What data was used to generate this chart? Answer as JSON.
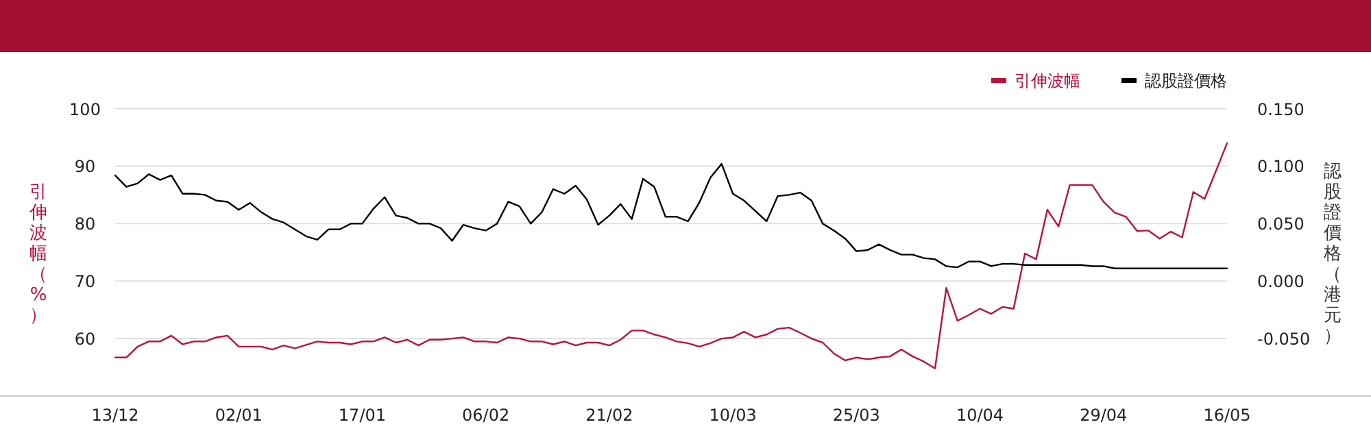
{
  "chart_data": {
    "type": "line",
    "categories": [
      "13/12",
      null,
      null,
      null,
      null,
      null,
      null,
      null,
      null,
      null,
      null,
      "02/01",
      null,
      null,
      null,
      null,
      null,
      null,
      null,
      null,
      null,
      null,
      "17/01",
      null,
      null,
      null,
      null,
      null,
      null,
      null,
      null,
      null,
      null,
      "06/02",
      null,
      null,
      null,
      null,
      null,
      null,
      null,
      null,
      null,
      null,
      "21/02",
      null,
      null,
      null,
      null,
      null,
      null,
      null,
      null,
      null,
      null,
      "10/03",
      null,
      null,
      null,
      null,
      null,
      null,
      null,
      null,
      null,
      null,
      "25/03",
      null,
      null,
      null,
      null,
      null,
      null,
      null,
      null,
      null,
      null,
      "10/04",
      null,
      null,
      null,
      null,
      null,
      null,
      null,
      null,
      null,
      null,
      "29/04",
      null,
      null,
      null,
      null,
      null,
      null,
      null,
      null,
      null,
      null,
      "16/05"
    ],
    "series": [
      {
        "name": "引伸波幅",
        "color": "#b8123f",
        "values": [
          56.7,
          56.7,
          58.6,
          59.5,
          59.5,
          60.5,
          59.0,
          59.5,
          59.5,
          60.2,
          60.5,
          58.6,
          58.6,
          58.6,
          58.1,
          58.8,
          58.3,
          58.9,
          59.5,
          59.3,
          59.3,
          59.0,
          59.5,
          59.5,
          60.2,
          59.3,
          59.8,
          58.8,
          59.8,
          59.8,
          60.0,
          60.2,
          59.5,
          59.5,
          59.3,
          60.2,
          60.0,
          59.5,
          59.5,
          59.0,
          59.5,
          58.8,
          59.3,
          59.3,
          58.8,
          59.8,
          61.4,
          61.4,
          60.7,
          60.2,
          59.5,
          59.2,
          58.6,
          59.2,
          60.0,
          60.2,
          61.2,
          60.2,
          60.7,
          61.7,
          61.9,
          61.0,
          60.0,
          59.3,
          57.4,
          56.2,
          56.7,
          56.4,
          56.7,
          56.9,
          58.1,
          56.9,
          56.0,
          54.8,
          68.8,
          63.1,
          64.1,
          65.2,
          64.3,
          65.5,
          65.2,
          74.8,
          73.8,
          82.4,
          79.5,
          86.7,
          86.7,
          86.7,
          83.8,
          81.9,
          81.2,
          78.7,
          78.8,
          77.4,
          78.6,
          77.6,
          85.5,
          84.3,
          89.1,
          94.0
        ]
      },
      {
        "name": "認股證價格",
        "color": "#000000",
        "axis": "y2",
        "values": [
          0.092,
          0.082,
          0.085,
          0.093,
          0.088,
          0.092,
          0.076,
          0.076,
          0.075,
          0.07,
          0.069,
          0.062,
          0.068,
          0.06,
          0.054,
          0.051,
          0.045,
          0.039,
          0.036,
          0.045,
          0.045,
          0.05,
          0.05,
          0.063,
          0.073,
          0.057,
          0.055,
          0.05,
          0.05,
          0.046,
          0.035,
          0.049,
          0.046,
          0.044,
          0.05,
          0.069,
          0.065,
          0.05,
          0.06,
          0.08,
          0.076,
          0.083,
          0.071,
          0.049,
          0.057,
          0.067,
          0.054,
          0.089,
          0.082,
          0.056,
          0.056,
          0.052,
          0.068,
          0.09,
          0.102,
          0.076,
          0.07,
          0.061,
          0.052,
          0.074,
          0.075,
          0.077,
          0.07,
          0.05,
          0.044,
          0.037,
          0.026,
          0.027,
          0.032,
          0.027,
          0.023,
          0.023,
          0.02,
          0.019,
          0.013,
          0.012,
          0.017,
          0.017,
          0.013,
          0.015,
          0.015,
          0.014,
          0.014,
          0.014,
          0.014,
          0.014,
          0.014,
          0.013,
          0.013,
          0.011,
          0.011,
          0.011,
          0.011,
          0.011,
          0.011,
          0.011,
          0.011,
          0.011,
          0.011,
          0.011
        ]
      }
    ],
    "ylabel": "引伸波幅（%）",
    "y2label": "認股證價格（港元）",
    "ylim": [
      50,
      100
    ],
    "yticks": [
      60,
      70,
      80,
      90,
      100
    ],
    "y2lim": [
      -0.1,
      0.15
    ],
    "y2ticks": [
      {
        "value": -0.05,
        "label": "-0.050"
      },
      {
        "value": 0,
        "label": "0.000"
      },
      {
        "value": 0.05,
        "label": "0.050"
      },
      {
        "value": 0.1,
        "label": "0.100"
      },
      {
        "value": 0.15,
        "label": "0.150"
      }
    ],
    "grid": "y",
    "legend": "top right",
    "marker": "none",
    "line_style": "solid"
  }
}
